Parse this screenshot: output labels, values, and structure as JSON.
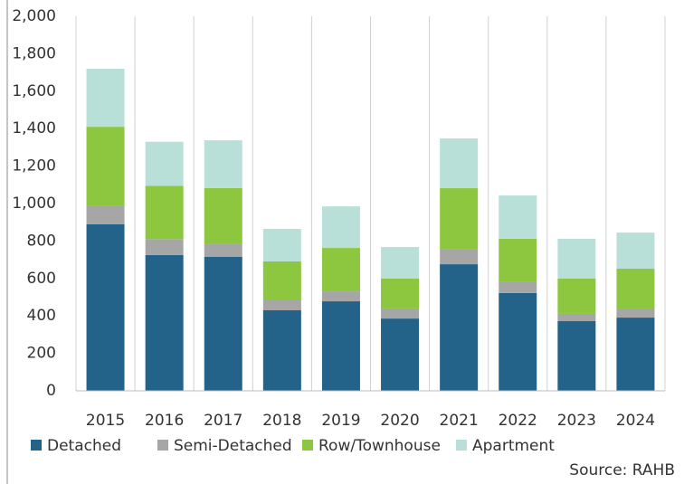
{
  "chart_data": {
    "type": "stacked_bar",
    "categories": [
      "2015",
      "2016",
      "2017",
      "2018",
      "2019",
      "2020",
      "2021",
      "2022",
      "2023",
      "2024"
    ],
    "series": [
      {
        "name": "Detached",
        "color": "#236289",
        "values": [
          890,
          725,
          715,
          430,
          478,
          386,
          676,
          522,
          372,
          391
        ]
      },
      {
        "name": "Semi-Detached",
        "color": "#a6a6a6",
        "values": [
          100,
          85,
          68,
          58,
          53,
          54,
          78,
          58,
          39,
          44
        ]
      },
      {
        "name": "Row/Townhouse",
        "color": "#8dc63f",
        "values": [
          420,
          285,
          300,
          203,
          232,
          159,
          328,
          232,
          188,
          217
        ]
      },
      {
        "name": "Apartment",
        "color": "#b9e0d8",
        "values": [
          310,
          235,
          255,
          174,
          222,
          169,
          266,
          231,
          213,
          193
        ]
      }
    ],
    "ylim": [
      0,
      2000
    ],
    "yticks": [
      0,
      200,
      400,
      600,
      800,
      {
        "value": 1000,
        "label": "1,000"
      },
      {
        "value": 1200,
        "label": "1,200"
      },
      {
        "value": 1400,
        "label": "1,400"
      },
      {
        "value": 1600,
        "label": "1,600"
      },
      {
        "value": 1800,
        "label": "1,800"
      },
      {
        "value": 2000,
        "label": "2,000"
      }
    ],
    "source": "Source: RAHB"
  }
}
